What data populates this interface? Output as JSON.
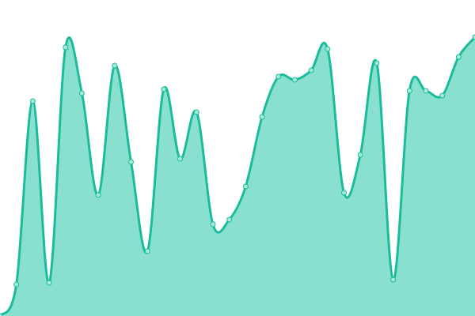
{
  "chart_data": {
    "type": "area",
    "title": "",
    "xlabel": "",
    "ylabel": "",
    "x": [
      0,
      1,
      2,
      3,
      4,
      5,
      6,
      7,
      8,
      9,
      10,
      11,
      12,
      13,
      14,
      15,
      16,
      17,
      18,
      19,
      20,
      21,
      22,
      23,
      24,
      25,
      26,
      27,
      28,
      29
    ],
    "values": [
      0,
      40,
      272,
      42,
      340,
      282,
      153,
      317,
      195,
      82,
      287,
      199,
      258,
      116,
      122,
      164,
      252,
      303,
      299,
      311,
      338,
      156,
      204,
      320,
      46,
      285,
      285,
      279,
      328,
      353
    ],
    "ylim": [
      0,
      400
    ],
    "grid": false,
    "axes_visible": false,
    "colors": {
      "line": "#1bbc9b",
      "fill": "#8ae0cf",
      "marker_fill": "#a8ead9"
    }
  }
}
